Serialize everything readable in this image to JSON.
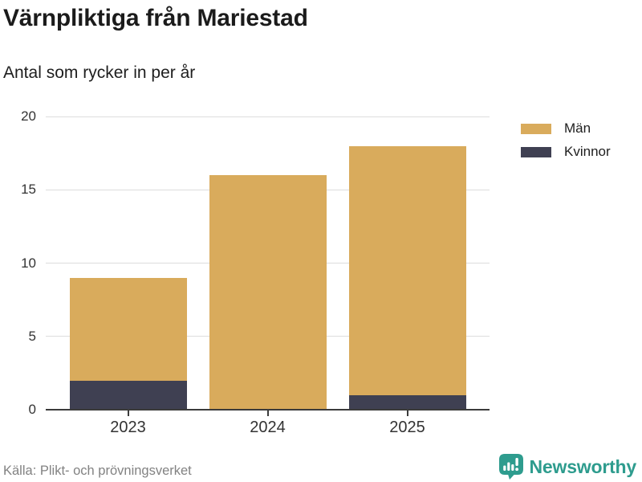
{
  "header": {
    "title": "Värnpliktiga från Mariestad",
    "subtitle": "Antal som rycker in per år"
  },
  "chart_data": {
    "type": "bar",
    "stacked": true,
    "title": "Värnpliktiga från Mariestad",
    "subtitle": "Antal som rycker in per år",
    "categories": [
      "2023",
      "2024",
      "2025"
    ],
    "series": [
      {
        "name": "Män",
        "color": "#d9ab5c",
        "values": [
          7,
          16,
          17
        ]
      },
      {
        "name": "Kvinnor",
        "color": "#3f4052",
        "values": [
          2,
          0,
          1
        ]
      }
    ],
    "stack_order_bottom_to_top": [
      "Kvinnor",
      "Män"
    ],
    "totals": [
      9,
      16,
      18
    ],
    "xlabel": "",
    "ylabel": "",
    "ylim": [
      0,
      20
    ],
    "yticks": [
      0,
      5,
      10,
      15,
      20
    ],
    "grid": true,
    "legend_position": "top-right"
  },
  "footer": {
    "source": "Källa: Plikt- och prövningsverket",
    "brand": "Newsworthy",
    "brand_color": "#2e9c8e"
  }
}
